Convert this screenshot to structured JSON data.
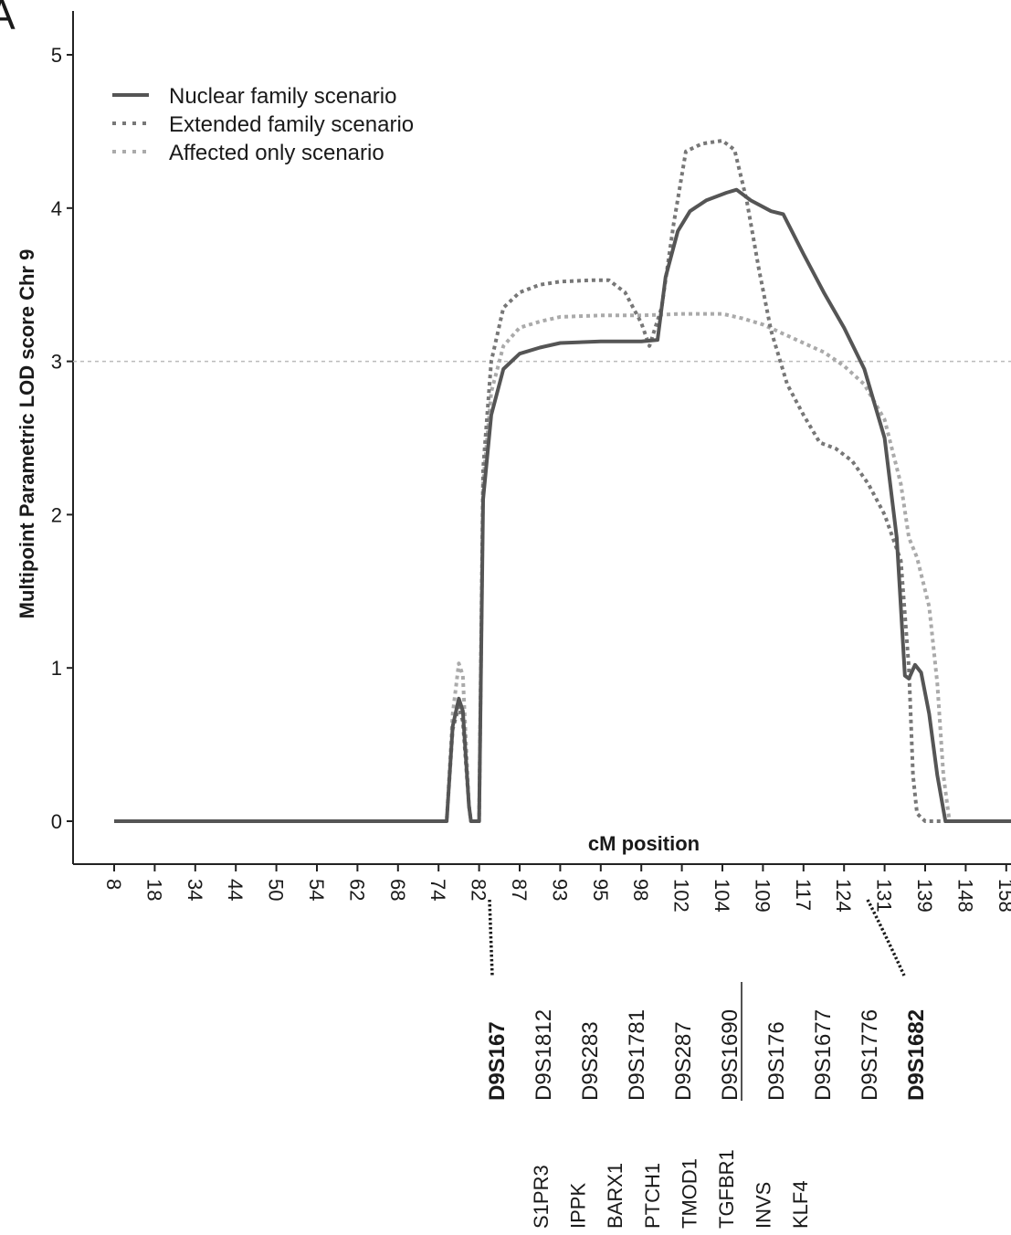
{
  "panel_label": "A",
  "chart_data": {
    "type": "line",
    "title": "",
    "ylabel": "Multipoint Parametric LOD score Chr 9",
    "xlabel": "cM position",
    "ylim": [
      0,
      5
    ],
    "yticks": [
      0,
      1,
      2,
      3,
      4,
      5
    ],
    "x_tick_labels": [
      "8",
      "18",
      "34",
      "44",
      "50",
      "54",
      "62",
      "68",
      "74",
      "82",
      "87",
      "93",
      "95",
      "98",
      "102",
      "104",
      "109",
      "117",
      "124",
      "131",
      "139",
      "148",
      "158"
    ],
    "x_index_range": [
      -0.5,
      23.0
    ],
    "threshold": 3,
    "legend": {
      "position": "top-left",
      "entries": [
        "Nuclear family scenario",
        "Extended family scenario",
        "Affected only scenario"
      ]
    },
    "series": [
      {
        "name": "Nuclear family scenario",
        "style": "solid",
        "color": "#555555",
        "points": [
          [
            0,
            0
          ],
          [
            8.2,
            0
          ],
          [
            8.35,
            0.62
          ],
          [
            8.5,
            0.8
          ],
          [
            8.6,
            0.72
          ],
          [
            8.75,
            0.1
          ],
          [
            8.8,
            0
          ],
          [
            9.0,
            0
          ],
          [
            9.1,
            2.1
          ],
          [
            9.3,
            2.65
          ],
          [
            9.6,
            2.95
          ],
          [
            10.0,
            3.05
          ],
          [
            10.5,
            3.09
          ],
          [
            11.0,
            3.12
          ],
          [
            12.0,
            3.13
          ],
          [
            13.0,
            3.13
          ],
          [
            13.4,
            3.14
          ],
          [
            13.6,
            3.55
          ],
          [
            13.9,
            3.85
          ],
          [
            14.2,
            3.98
          ],
          [
            14.6,
            4.05
          ],
          [
            15.1,
            4.1
          ],
          [
            15.35,
            4.12
          ],
          [
            15.7,
            4.05
          ],
          [
            16.2,
            3.98
          ],
          [
            16.5,
            3.96
          ],
          [
            17.0,
            3.7
          ],
          [
            17.5,
            3.45
          ],
          [
            18.0,
            3.22
          ],
          [
            18.5,
            2.95
          ],
          [
            19.0,
            2.5
          ],
          [
            19.3,
            1.85
          ],
          [
            19.5,
            0.95
          ],
          [
            19.6,
            0.93
          ],
          [
            19.75,
            1.02
          ],
          [
            19.9,
            0.97
          ],
          [
            20.1,
            0.7
          ],
          [
            20.3,
            0.3
          ],
          [
            20.5,
            0
          ],
          [
            23.0,
            0
          ]
        ]
      },
      {
        "name": "Extended family scenario",
        "style": "dotted",
        "color": "#777777",
        "points": [
          [
            0,
            0
          ],
          [
            8.2,
            0
          ],
          [
            8.35,
            0.6
          ],
          [
            8.5,
            0.75
          ],
          [
            8.6,
            0.65
          ],
          [
            8.75,
            0.1
          ],
          [
            8.8,
            0
          ],
          [
            9.0,
            0
          ],
          [
            9.1,
            2.3
          ],
          [
            9.3,
            3.0
          ],
          [
            9.6,
            3.35
          ],
          [
            10.0,
            3.45
          ],
          [
            10.5,
            3.5
          ],
          [
            11.0,
            3.52
          ],
          [
            11.8,
            3.53
          ],
          [
            12.2,
            3.53
          ],
          [
            12.6,
            3.45
          ],
          [
            13.0,
            3.25
          ],
          [
            13.2,
            3.1
          ],
          [
            13.5,
            3.35
          ],
          [
            13.8,
            3.9
          ],
          [
            14.1,
            4.37
          ],
          [
            14.5,
            4.42
          ],
          [
            15.0,
            4.44
          ],
          [
            15.3,
            4.38
          ],
          [
            15.6,
            4.05
          ],
          [
            15.9,
            3.6
          ],
          [
            16.2,
            3.2
          ],
          [
            16.6,
            2.85
          ],
          [
            17.0,
            2.65
          ],
          [
            17.4,
            2.47
          ],
          [
            17.8,
            2.43
          ],
          [
            18.2,
            2.35
          ],
          [
            18.6,
            2.2
          ],
          [
            19.0,
            2.0
          ],
          [
            19.4,
            1.7
          ],
          [
            19.6,
            1.0
          ],
          [
            19.7,
            0.3
          ],
          [
            19.8,
            0.05
          ],
          [
            20.0,
            0
          ],
          [
            23.0,
            0
          ]
        ]
      },
      {
        "name": "Affected only scenario",
        "style": "dotted",
        "color": "#aaaaaa",
        "points": [
          [
            0,
            0
          ],
          [
            8.2,
            0
          ],
          [
            8.35,
            0.7
          ],
          [
            8.5,
            1.03
          ],
          [
            8.6,
            0.95
          ],
          [
            8.75,
            0.1
          ],
          [
            8.8,
            0
          ],
          [
            9.0,
            0
          ],
          [
            9.1,
            2.2
          ],
          [
            9.3,
            2.8
          ],
          [
            9.6,
            3.1
          ],
          [
            10.0,
            3.22
          ],
          [
            10.5,
            3.26
          ],
          [
            11.0,
            3.29
          ],
          [
            12.0,
            3.3
          ],
          [
            13.0,
            3.3
          ],
          [
            14.0,
            3.31
          ],
          [
            15.0,
            3.31
          ],
          [
            15.5,
            3.28
          ],
          [
            16.0,
            3.24
          ],
          [
            16.5,
            3.18
          ],
          [
            17.0,
            3.12
          ],
          [
            17.5,
            3.06
          ],
          [
            18.0,
            2.97
          ],
          [
            18.5,
            2.85
          ],
          [
            19.0,
            2.62
          ],
          [
            19.4,
            2.2
          ],
          [
            19.6,
            1.85
          ],
          [
            19.8,
            1.72
          ],
          [
            20.1,
            1.4
          ],
          [
            20.3,
            0.9
          ],
          [
            20.45,
            0.3
          ],
          [
            20.6,
            0
          ],
          [
            23.0,
            0
          ]
        ]
      }
    ]
  },
  "markers": [
    {
      "name": "D9S167",
      "bold": true,
      "underline": false
    },
    {
      "name": "D9S1812",
      "bold": false,
      "underline": false
    },
    {
      "name": "D9S283",
      "bold": false,
      "underline": false
    },
    {
      "name": "D9S1781",
      "bold": false,
      "underline": false
    },
    {
      "name": "D9S287",
      "bold": false,
      "underline": false
    },
    {
      "name": "D9S1690",
      "bold": false,
      "underline": true
    },
    {
      "name": "D9S176",
      "bold": false,
      "underline": false
    },
    {
      "name": "D9S1677",
      "bold": false,
      "underline": false
    },
    {
      "name": "D9S1776",
      "bold": false,
      "underline": false
    },
    {
      "name": "D9S1682",
      "bold": true,
      "underline": false
    }
  ],
  "genes": [
    "S1PR3",
    "IPPK",
    "BARX1",
    "PTCH1",
    "TMOD1",
    "TGFBR1",
    "INVS",
    "KLF4"
  ]
}
